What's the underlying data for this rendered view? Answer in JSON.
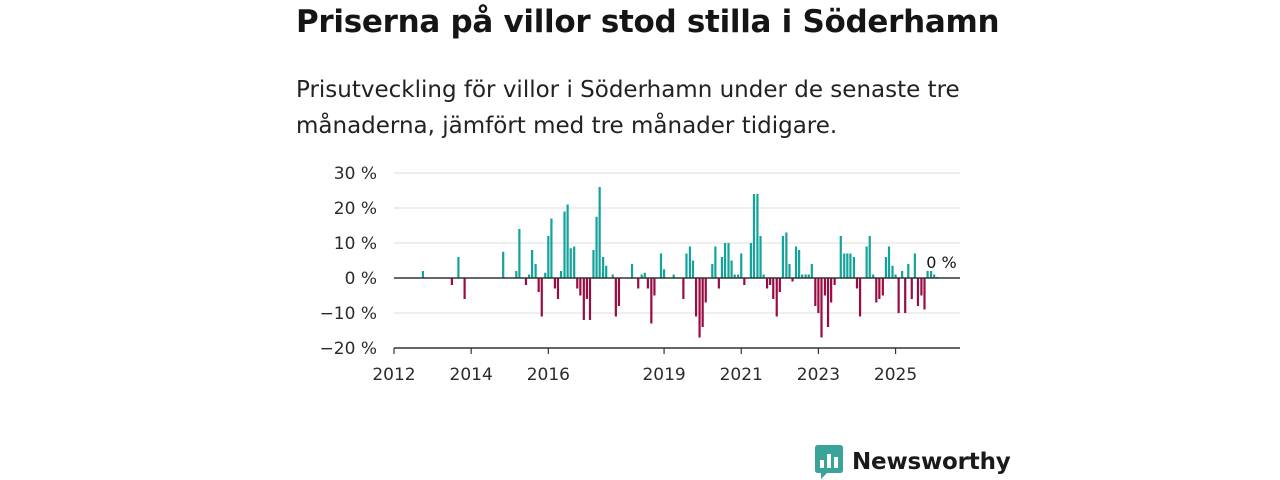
{
  "header": {
    "title": "Priserna på villor stod stilla i Söderhamn",
    "subtitle": "Prisutveckling för villor i Söderhamn under de senaste tre månaderna, jämfört med tre månader tidigare."
  },
  "brand": {
    "name": "Newsworthy",
    "color": "#3aa39a",
    "icon": "bar-chart-logo-icon"
  },
  "colors": {
    "positive": "#12a39a",
    "negative": "#9a0b43",
    "grid": "#dddddd",
    "axis": "#333333"
  },
  "chart_data": {
    "type": "bar",
    "title": "Priserna på villor stod stilla i Söderhamn",
    "ylabel": "",
    "xlabel": "",
    "ylim": [
      -20,
      30
    ],
    "yticks": [
      30,
      20,
      10,
      0,
      -10,
      -20
    ],
    "ytick_labels": [
      "30 %",
      "20 %",
      "10 %",
      "0 %",
      "−10 %",
      "−20 %"
    ],
    "xlim": [
      2012.0,
      2026.67
    ],
    "xticks": [
      2012,
      2014,
      2016,
      2019,
      2021,
      2023,
      2025
    ],
    "xtick_labels": [
      "2012",
      "2014",
      "2016",
      "2019",
      "2021",
      "2023",
      "2025"
    ],
    "last_value_label": "0 %",
    "series": [
      {
        "name": "Prisutveckling",
        "points": [
          {
            "x": 2012.75,
            "y": 2
          },
          {
            "x": 2013.5,
            "y": -2
          },
          {
            "x": 2013.67,
            "y": 6
          },
          {
            "x": 2013.83,
            "y": -6
          },
          {
            "x": 2014.83,
            "y": 7.5
          },
          {
            "x": 2015.17,
            "y": 2
          },
          {
            "x": 2015.25,
            "y": 14
          },
          {
            "x": 2015.42,
            "y": -2
          },
          {
            "x": 2015.5,
            "y": 1
          },
          {
            "x": 2015.58,
            "y": 8
          },
          {
            "x": 2015.67,
            "y": 4
          },
          {
            "x": 2015.75,
            "y": -4
          },
          {
            "x": 2015.83,
            "y": -11
          },
          {
            "x": 2015.92,
            "y": 1.5
          },
          {
            "x": 2016.0,
            "y": 12
          },
          {
            "x": 2016.08,
            "y": 17
          },
          {
            "x": 2016.17,
            "y": -3
          },
          {
            "x": 2016.25,
            "y": -6
          },
          {
            "x": 2016.33,
            "y": 2
          },
          {
            "x": 2016.42,
            "y": 19
          },
          {
            "x": 2016.5,
            "y": 21
          },
          {
            "x": 2016.58,
            "y": 8.5
          },
          {
            "x": 2016.67,
            "y": 9
          },
          {
            "x": 2016.75,
            "y": -3
          },
          {
            "x": 2016.83,
            "y": -5
          },
          {
            "x": 2016.92,
            "y": -12
          },
          {
            "x": 2017.0,
            "y": -6
          },
          {
            "x": 2017.08,
            "y": -12
          },
          {
            "x": 2017.17,
            "y": 8
          },
          {
            "x": 2017.25,
            "y": 17.5
          },
          {
            "x": 2017.33,
            "y": 26
          },
          {
            "x": 2017.42,
            "y": 6
          },
          {
            "x": 2017.5,
            "y": 3.5
          },
          {
            "x": 2017.67,
            "y": 1
          },
          {
            "x": 2017.75,
            "y": -11
          },
          {
            "x": 2017.83,
            "y": -8
          },
          {
            "x": 2018.17,
            "y": 4
          },
          {
            "x": 2018.33,
            "y": -3
          },
          {
            "x": 2018.42,
            "y": 1
          },
          {
            "x": 2018.5,
            "y": 1.5
          },
          {
            "x": 2018.58,
            "y": -3
          },
          {
            "x": 2018.67,
            "y": -13
          },
          {
            "x": 2018.75,
            "y": -5
          },
          {
            "x": 2018.92,
            "y": 7
          },
          {
            "x": 2019.0,
            "y": 2.5
          },
          {
            "x": 2019.25,
            "y": 1
          },
          {
            "x": 2019.5,
            "y": -6
          },
          {
            "x": 2019.58,
            "y": 7
          },
          {
            "x": 2019.67,
            "y": 9
          },
          {
            "x": 2019.75,
            "y": 5
          },
          {
            "x": 2019.83,
            "y": -11
          },
          {
            "x": 2019.92,
            "y": -17
          },
          {
            "x": 2020.0,
            "y": -14
          },
          {
            "x": 2020.08,
            "y": -7
          },
          {
            "x": 2020.25,
            "y": 4
          },
          {
            "x": 2020.33,
            "y": 9
          },
          {
            "x": 2020.42,
            "y": -3
          },
          {
            "x": 2020.5,
            "y": 6
          },
          {
            "x": 2020.58,
            "y": 10
          },
          {
            "x": 2020.67,
            "y": 10
          },
          {
            "x": 2020.75,
            "y": 5
          },
          {
            "x": 2020.83,
            "y": 1
          },
          {
            "x": 2020.92,
            "y": 1
          },
          {
            "x": 2021.0,
            "y": 7
          },
          {
            "x": 2021.08,
            "y": -2
          },
          {
            "x": 2021.25,
            "y": 10
          },
          {
            "x": 2021.33,
            "y": 24
          },
          {
            "x": 2021.42,
            "y": 24
          },
          {
            "x": 2021.5,
            "y": 12
          },
          {
            "x": 2021.58,
            "y": 1
          },
          {
            "x": 2021.67,
            "y": -3
          },
          {
            "x": 2021.75,
            "y": -2
          },
          {
            "x": 2021.83,
            "y": -6
          },
          {
            "x": 2021.92,
            "y": -11
          },
          {
            "x": 2022.0,
            "y": -4
          },
          {
            "x": 2022.08,
            "y": 12
          },
          {
            "x": 2022.17,
            "y": 13
          },
          {
            "x": 2022.25,
            "y": 4
          },
          {
            "x": 2022.33,
            "y": -1
          },
          {
            "x": 2022.42,
            "y": 9
          },
          {
            "x": 2022.5,
            "y": 8
          },
          {
            "x": 2022.58,
            "y": 1
          },
          {
            "x": 2022.67,
            "y": 1
          },
          {
            "x": 2022.75,
            "y": 1
          },
          {
            "x": 2022.83,
            "y": 4
          },
          {
            "x": 2022.92,
            "y": -8
          },
          {
            "x": 2023.0,
            "y": -10
          },
          {
            "x": 2023.08,
            "y": -17
          },
          {
            "x": 2023.17,
            "y": -5
          },
          {
            "x": 2023.25,
            "y": -14
          },
          {
            "x": 2023.33,
            "y": -7
          },
          {
            "x": 2023.42,
            "y": -2
          },
          {
            "x": 2023.58,
            "y": 12
          },
          {
            "x": 2023.67,
            "y": 7
          },
          {
            "x": 2023.75,
            "y": 7
          },
          {
            "x": 2023.83,
            "y": 7
          },
          {
            "x": 2023.92,
            "y": 6
          },
          {
            "x": 2024.0,
            "y": -3
          },
          {
            "x": 2024.08,
            "y": -11
          },
          {
            "x": 2024.25,
            "y": 9
          },
          {
            "x": 2024.33,
            "y": 12
          },
          {
            "x": 2024.42,
            "y": 1
          },
          {
            "x": 2024.5,
            "y": -7
          },
          {
            "x": 2024.58,
            "y": -6
          },
          {
            "x": 2024.67,
            "y": -5
          },
          {
            "x": 2024.75,
            "y": 6
          },
          {
            "x": 2024.83,
            "y": 9
          },
          {
            "x": 2024.92,
            "y": 3.5
          },
          {
            "x": 2025.0,
            "y": 1
          },
          {
            "x": 2025.08,
            "y": -10
          },
          {
            "x": 2025.17,
            "y": 2
          },
          {
            "x": 2025.25,
            "y": -10
          },
          {
            "x": 2025.33,
            "y": 4
          },
          {
            "x": 2025.42,
            "y": -6
          },
          {
            "x": 2025.5,
            "y": 7
          },
          {
            "x": 2025.58,
            "y": -8
          },
          {
            "x": 2025.67,
            "y": -5
          },
          {
            "x": 2025.75,
            "y": -9
          },
          {
            "x": 2025.83,
            "y": 2
          },
          {
            "x": 2025.92,
            "y": 2
          },
          {
            "x": 2026.0,
            "y": 1
          },
          {
            "x": 2026.08,
            "y": 0.3
          }
        ]
      }
    ]
  }
}
